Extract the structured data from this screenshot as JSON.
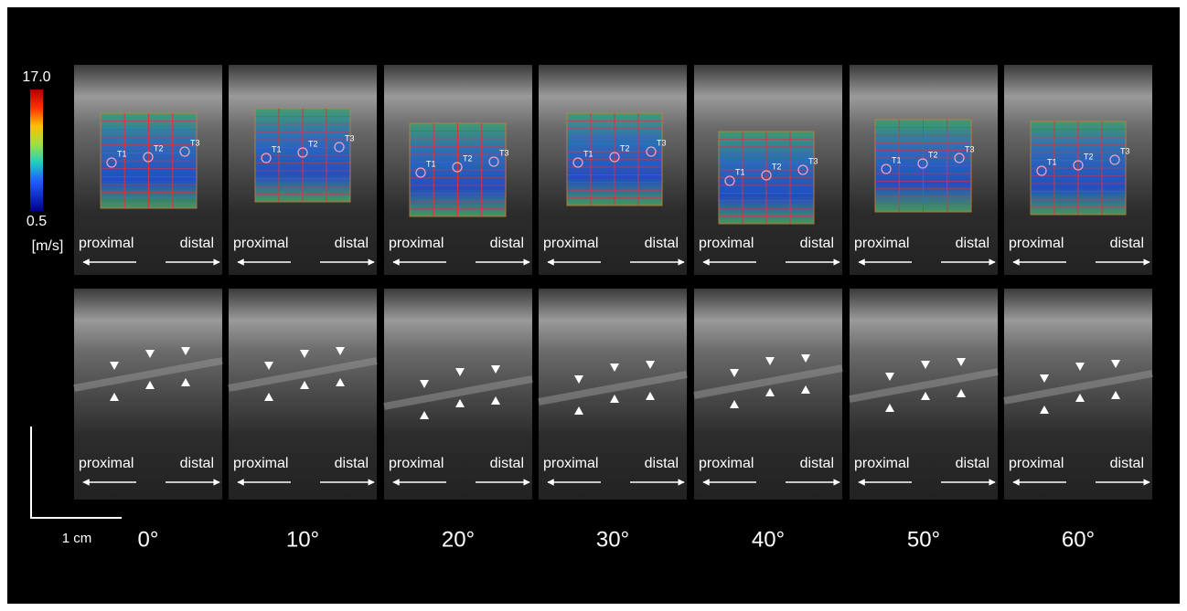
{
  "colorbar": {
    "max": "17.0",
    "min": "0.5",
    "unit": "[m/s]"
  },
  "scale_bar": "1 cm",
  "panels": [
    {
      "angle": "0°",
      "top": {
        "left": "proximal",
        "right": "distal",
        "markers": [
          "T1",
          "T2",
          "T3"
        ]
      },
      "bottom": {
        "left": "proximal",
        "right": "distal"
      }
    },
    {
      "angle": "10°",
      "top": {
        "left": "proximal",
        "right": "distal",
        "markers": [
          "T1",
          "T2",
          "T3"
        ]
      },
      "bottom": {
        "left": "proximal",
        "right": "distal"
      }
    },
    {
      "angle": "20°",
      "top": {
        "left": "proximal",
        "right": "distal",
        "markers": [
          "T1",
          "T2",
          "T3"
        ]
      },
      "bottom": {
        "left": "proximal",
        "right": "distal"
      }
    },
    {
      "angle": "30°",
      "top": {
        "left": "proximal",
        "right": "distal",
        "markers": [
          "T1",
          "T2",
          "T3"
        ]
      },
      "bottom": {
        "left": "proximal",
        "right": "distal"
      }
    },
    {
      "angle": "40°",
      "top": {
        "left": "proximal",
        "right": "distal",
        "markers": [
          "T1",
          "T2",
          "T3"
        ]
      },
      "bottom": {
        "left": "proximal",
        "right": "distal"
      }
    },
    {
      "angle": "50°",
      "top": {
        "left": "proximal",
        "right": "distal",
        "markers": [
          "T1",
          "T2",
          "T3"
        ]
      },
      "bottom": {
        "left": "proximal",
        "right": "distal"
      }
    },
    {
      "angle": "60°",
      "top": {
        "left": "proximal",
        "right": "distal",
        "markers": [
          "T1",
          "T2",
          "T3"
        ]
      },
      "bottom": {
        "left": "proximal",
        "right": "distal"
      }
    }
  ]
}
